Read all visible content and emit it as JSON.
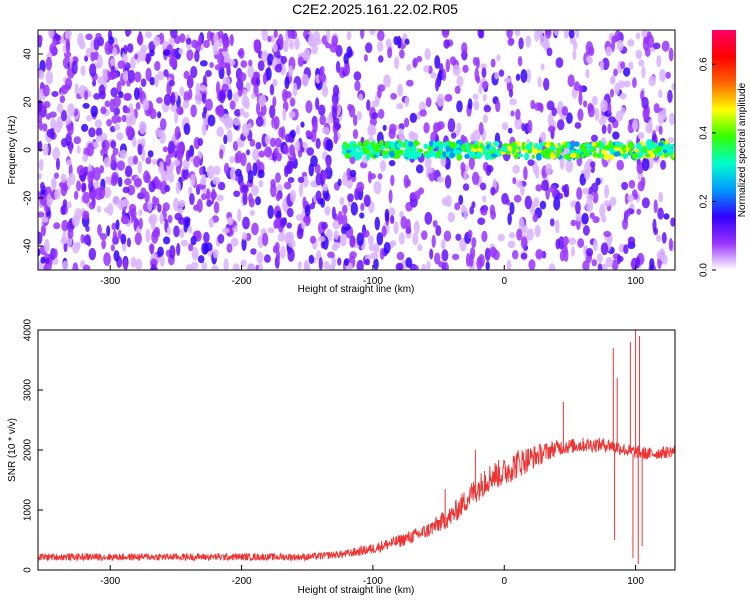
{
  "chart_data": [
    {
      "type": "heatmap",
      "title": "C2E2.2025.161.22.02.R05",
      "xlabel": "Height of straight line (km)",
      "ylabel": "Frequency (Hz)",
      "xlim": [
        -355,
        130
      ],
      "ylim": [
        -50,
        50
      ],
      "xticks": [
        -300,
        -200,
        -100,
        0,
        100
      ],
      "yticks": [
        -40,
        -20,
        0,
        20,
        40
      ],
      "colorbar": {
        "label": "Normalized spectral amplitude",
        "range": [
          0,
          0.7
        ],
        "ticks": [
          "0.0",
          "0.2",
          "0.4",
          "0.6"
        ],
        "colors": [
          "#ffffff",
          "#9933ff",
          "#3300ff",
          "#0099ff",
          "#00ffcc",
          "#33ff00",
          "#ffff00",
          "#ff6600",
          "#ff0000",
          "#ff0066"
        ]
      },
      "signal_band": {
        "x_start": -125,
        "freq_center": 0,
        "amplitude_range": [
          0.25,
          0.5
        ]
      },
      "noise_regions": [
        {
          "x": [
            -355,
            -125
          ],
          "amplitude": "0.05-0.15",
          "density": "high"
        },
        {
          "x": [
            -125,
            130
          ],
          "amplitude": "0.05-0.15",
          "density": "medium"
        }
      ]
    },
    {
      "type": "line",
      "xlabel": "Height of straight line (km)",
      "ylabel": "SNR (10 * v/v)",
      "xlim": [
        -355,
        130
      ],
      "ylim": [
        0,
        4000
      ],
      "xticks": [
        -300,
        -200,
        -100,
        0,
        100
      ],
      "yticks": [
        0,
        1000,
        2000,
        3000,
        4000
      ],
      "color": "#ee3333",
      "baseline": [
        {
          "x": -355,
          "y": 200
        },
        {
          "x": -150,
          "y": 200
        },
        {
          "x": -120,
          "y": 250
        },
        {
          "x": -100,
          "y": 330
        },
        {
          "x": -80,
          "y": 450
        },
        {
          "x": -60,
          "y": 600
        },
        {
          "x": -40,
          "y": 850
        },
        {
          "x": -25,
          "y": 1200
        },
        {
          "x": -10,
          "y": 1500
        },
        {
          "x": 0,
          "y": 1550
        },
        {
          "x": 10,
          "y": 1700
        },
        {
          "x": 25,
          "y": 1850
        },
        {
          "x": 40,
          "y": 2000
        },
        {
          "x": 60,
          "y": 2050
        },
        {
          "x": 80,
          "y": 2050
        },
        {
          "x": 95,
          "y": 1950
        },
        {
          "x": 110,
          "y": 1900
        },
        {
          "x": 130,
          "y": 1950
        }
      ],
      "noise_amplitude": [
        {
          "x": -355,
          "a": 120
        },
        {
          "x": -130,
          "a": 120
        },
        {
          "x": -60,
          "a": 250
        },
        {
          "x": -20,
          "a": 450
        },
        {
          "x": 10,
          "a": 500
        },
        {
          "x": 40,
          "a": 260
        },
        {
          "x": 130,
          "a": 200
        }
      ],
      "spikes": [
        {
          "x": -45,
          "y": 1350
        },
        {
          "x": -22,
          "y": 2000
        },
        {
          "x": -15,
          "y": 1650
        },
        {
          "x": 45,
          "y": 2800
        },
        {
          "x": 83,
          "y": 3700
        },
        {
          "x": 84,
          "y": 500
        },
        {
          "x": 86,
          "y": 3200
        },
        {
          "x": 96,
          "y": 3800
        },
        {
          "x": 98,
          "y": 200
        },
        {
          "x": 100,
          "y": 4000
        },
        {
          "x": 102,
          "y": 100
        },
        {
          "x": 103,
          "y": 3900
        },
        {
          "x": 105,
          "y": 400
        }
      ]
    }
  ]
}
